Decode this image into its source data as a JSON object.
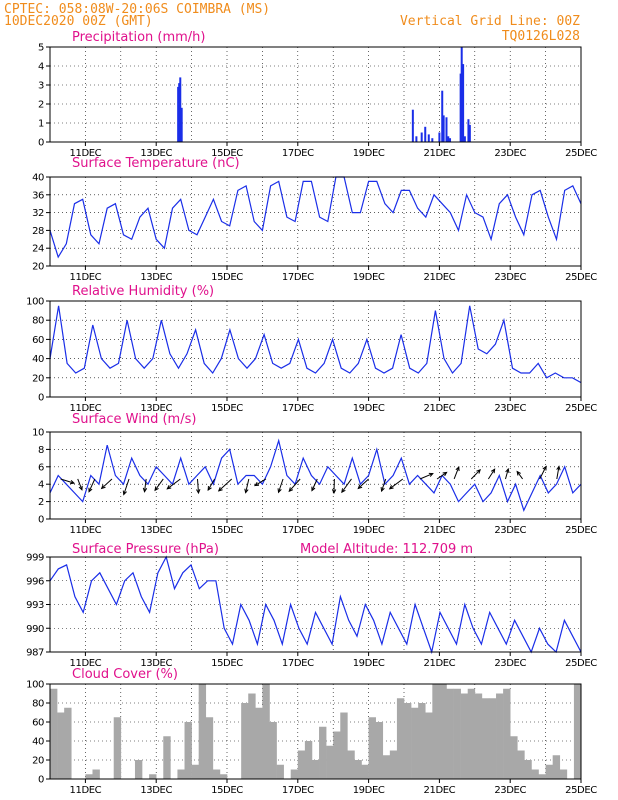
{
  "header": {
    "line1_left": "CPTEC:   058:08W-20:06S   COIMBRA (MS)",
    "line2_left": "10DEC2020 00Z (GMT)",
    "line1_right": "Vertical Grid Line: 00Z",
    "line2_right": "TQ0126L028",
    "model_altitude": "Model Altitude: 112.709 m"
  },
  "colors": {
    "header": "#f08c1c",
    "title": "#e0118c",
    "series": "#1a2ee8",
    "cloud": "#a8a8a8"
  },
  "x_tick_labels": [
    "11DEC",
    "13DEC",
    "15DEC",
    "17DEC",
    "19DEC",
    "21DEC",
    "23DEC",
    "25DEC"
  ],
  "chart_data": [
    {
      "type": "bar",
      "title": "Precipitation (mm/h)",
      "ylim": [
        0,
        5
      ],
      "yticks": [
        "0",
        "1",
        "2",
        "3",
        "4",
        "5"
      ],
      "x_unit": "days since 10DEC2020 00Z",
      "points": [
        [
          3.62,
          2.9
        ],
        [
          3.65,
          3.1
        ],
        [
          3.68,
          3.4
        ],
        [
          3.72,
          1.8
        ],
        [
          10.25,
          1.7
        ],
        [
          10.35,
          0.3
        ],
        [
          10.5,
          0.5
        ],
        [
          10.6,
          0.8
        ],
        [
          10.7,
          0.4
        ],
        [
          10.8,
          0.2
        ],
        [
          11.0,
          0.5
        ],
        [
          11.08,
          2.7
        ],
        [
          11.12,
          1.4
        ],
        [
          11.2,
          1.3
        ],
        [
          11.25,
          0.3
        ],
        [
          11.3,
          0.2
        ],
        [
          11.6,
          3.6
        ],
        [
          11.63,
          5.0
        ],
        [
          11.67,
          4.1
        ],
        [
          11.72,
          0.3
        ],
        [
          11.82,
          1.2
        ],
        [
          11.86,
          0.9
        ]
      ],
      "grid": true
    },
    {
      "type": "line",
      "title": "Surface Temperature (nC)",
      "ylim": [
        20,
        40
      ],
      "yticks": [
        "20",
        "24",
        "28",
        "32",
        "36",
        "40"
      ],
      "series": [
        {
          "values": [
            28,
            22,
            25,
            34,
            35,
            27,
            25,
            33,
            34,
            27,
            26,
            31,
            33,
            26,
            24,
            33,
            35,
            28,
            27,
            31,
            35,
            30,
            29,
            37,
            38,
            30,
            28,
            38,
            39,
            31,
            30,
            39,
            39,
            31,
            30,
            40,
            40,
            32,
            32,
            39,
            39,
            34,
            32,
            37,
            37,
            33,
            31,
            36,
            34,
            32,
            28,
            36,
            32,
            31,
            26,
            34,
            36,
            31,
            27,
            36,
            37,
            31,
            26,
            37,
            38,
            34
          ]
        }
      ],
      "grid": true
    },
    {
      "type": "line",
      "title": "Relative Humidity (%)",
      "ylim": [
        0,
        100
      ],
      "yticks": [
        "0",
        "20",
        "40",
        "60",
        "80",
        "100"
      ],
      "series": [
        {
          "values": [
            40,
            95,
            35,
            25,
            30,
            75,
            40,
            30,
            35,
            80,
            40,
            30,
            40,
            80,
            45,
            30,
            45,
            70,
            35,
            25,
            40,
            70,
            40,
            30,
            40,
            65,
            35,
            30,
            35,
            60,
            30,
            25,
            35,
            60,
            30,
            25,
            35,
            60,
            30,
            25,
            30,
            65,
            30,
            25,
            35,
            90,
            40,
            25,
            35,
            95,
            50,
            45,
            55,
            80,
            30,
            25,
            25,
            35,
            20,
            25,
            20,
            20,
            15
          ]
        }
      ],
      "grid": true
    },
    {
      "type": "line",
      "title": "Surface Wind (m/s)",
      "ylim": [
        0,
        10
      ],
      "yticks": [
        "0",
        "2",
        "4",
        "6",
        "8",
        "10"
      ],
      "series": [
        {
          "values": [
            3,
            5,
            4,
            3,
            2,
            5,
            4,
            8.5,
            5,
            4,
            7,
            5,
            4,
            6,
            5,
            4,
            7,
            4,
            5,
            6,
            4,
            7,
            8,
            4,
            5,
            5,
            4,
            6,
            9,
            5,
            4,
            7,
            5,
            4,
            6,
            5,
            4,
            7,
            4,
            5,
            8,
            4,
            5,
            7,
            4,
            5,
            4,
            3,
            5,
            4,
            2,
            3,
            4,
            2,
            3,
            5,
            2,
            4,
            1,
            3,
            5,
            3,
            4,
            6,
            3,
            4
          ]
        }
      ],
      "wind_arrows": true,
      "grid": true
    },
    {
      "type": "line",
      "title": "Surface Pressure (hPa)",
      "ylim": [
        987,
        999
      ],
      "yticks": [
        "987",
        "990",
        "993",
        "996",
        "999"
      ],
      "series": [
        {
          "values": [
            996,
            997.5,
            998,
            994,
            992,
            996,
            997,
            995,
            993,
            996,
            997,
            994,
            992,
            997,
            999,
            995,
            997,
            998,
            995,
            996,
            996,
            990,
            988,
            993,
            991,
            988,
            993,
            991,
            988,
            993,
            990,
            988,
            992,
            990,
            988,
            994,
            991,
            989,
            993,
            991,
            988,
            992,
            990,
            988,
            993,
            990,
            987,
            992,
            990,
            988,
            993,
            990,
            988,
            992,
            990,
            988,
            991,
            989,
            987,
            990,
            988,
            987,
            991,
            989,
            987
          ]
        }
      ],
      "grid": true
    },
    {
      "type": "area",
      "title": "Cloud Cover (%)",
      "ylim": [
        0,
        100
      ],
      "yticks": [
        "0",
        "20",
        "40",
        "60",
        "80",
        "100"
      ],
      "series": [
        {
          "values": [
            95,
            70,
            75,
            0,
            0,
            5,
            10,
            0,
            0,
            65,
            0,
            0,
            20,
            0,
            5,
            0,
            45,
            0,
            10,
            60,
            15,
            100,
            65,
            10,
            5,
            0,
            0,
            80,
            90,
            75,
            100,
            60,
            15,
            0,
            10,
            30,
            40,
            20,
            55,
            35,
            50,
            70,
            30,
            20,
            15,
            65,
            60,
            25,
            30,
            85,
            80,
            75,
            80,
            70,
            100,
            100,
            95,
            95,
            90,
            95,
            90,
            85,
            85,
            90,
            95,
            45,
            30,
            20,
            10,
            5,
            15,
            25,
            10,
            0,
            100
          ]
        }
      ],
      "grid": true
    }
  ]
}
